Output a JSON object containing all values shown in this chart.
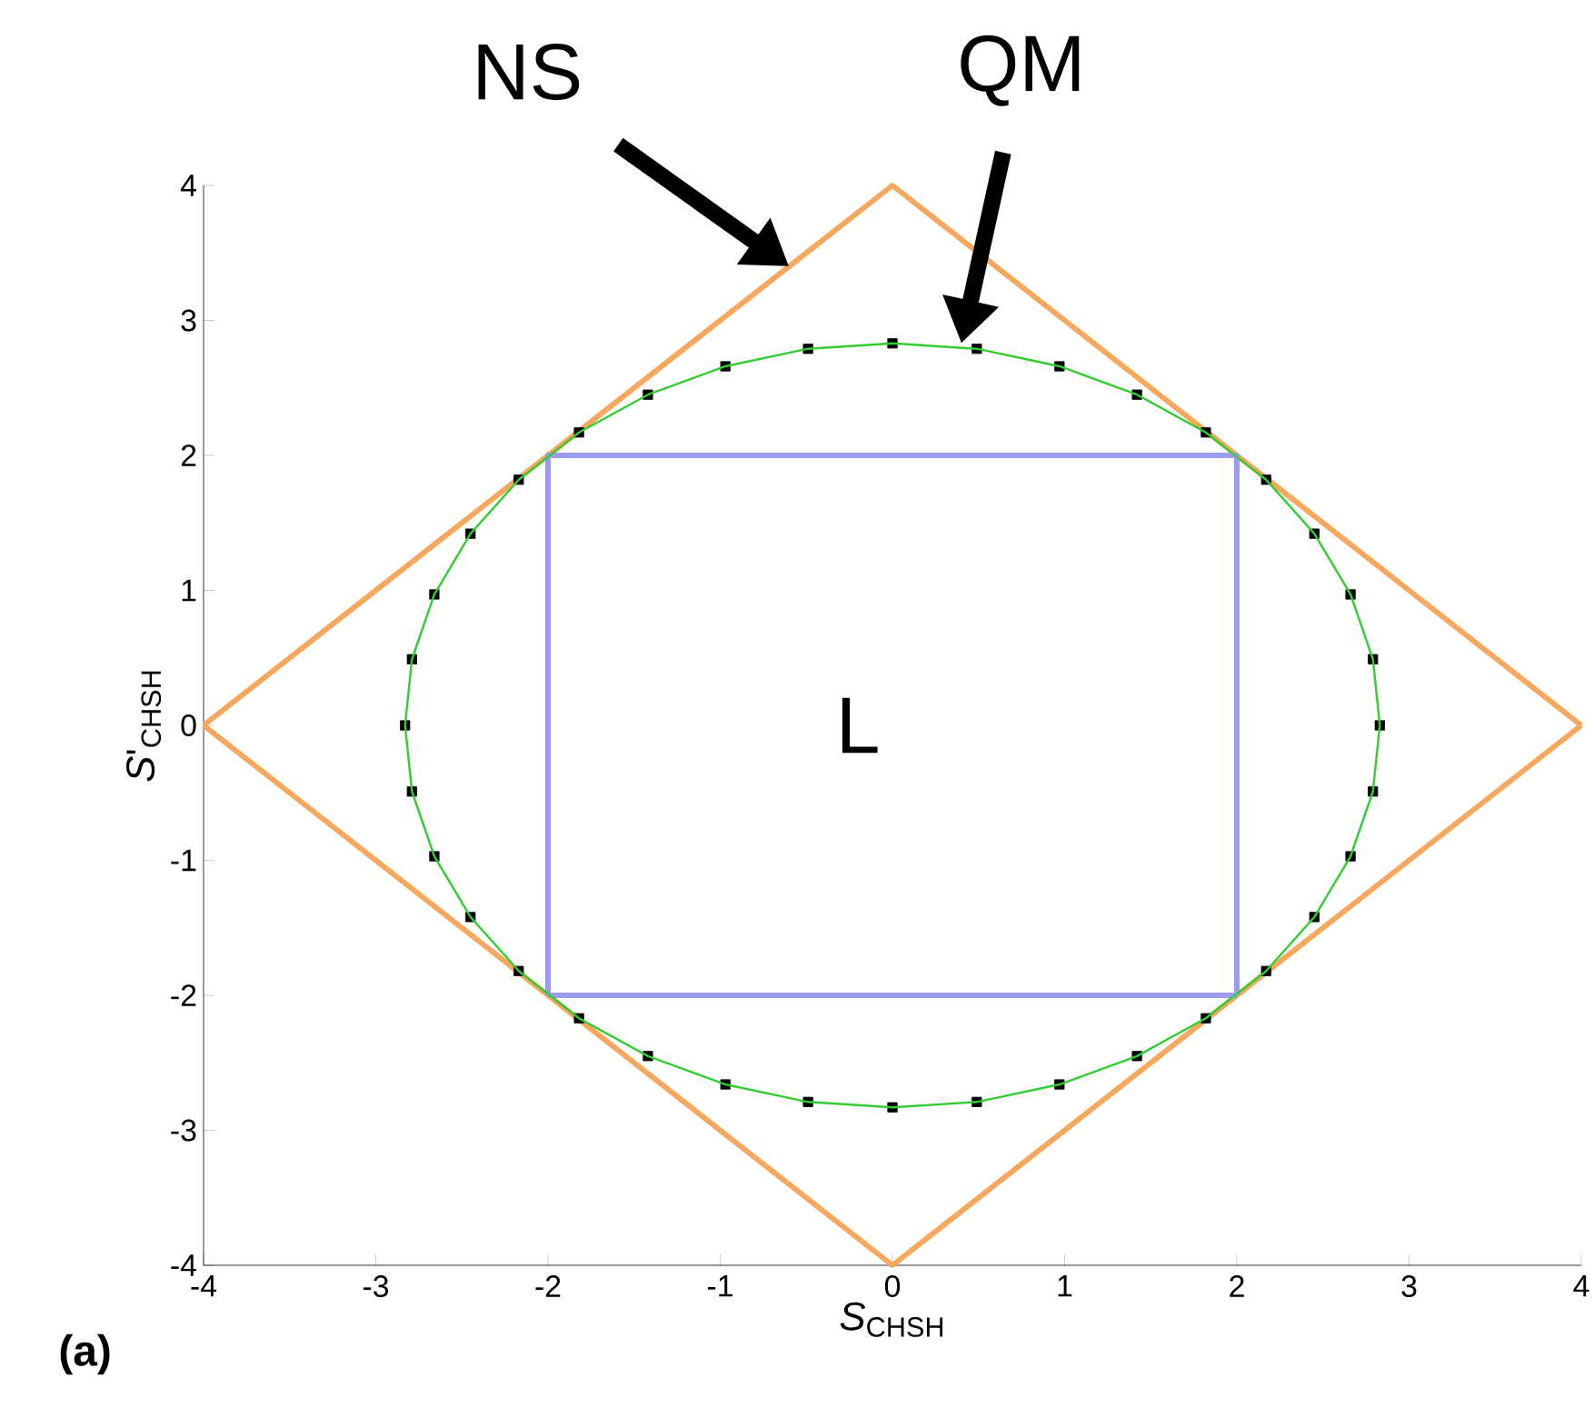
{
  "chart_data": {
    "type": "line",
    "xlabel": "*S*$_{CHSH}$",
    "ylabel": "*S*'$_{CHSH}$",
    "xlim": [
      -4,
      4
    ],
    "ylim": [
      -4,
      4
    ],
    "xticks": [
      -4,
      -3,
      -2,
      -1,
      0,
      1,
      2,
      3,
      4
    ],
    "yticks": [
      -4,
      -3,
      -2,
      -1,
      0,
      1,
      2,
      3,
      4
    ],
    "grid": false,
    "series": [
      {
        "color": "#f8a85e",
        "x": [
          -4,
          0,
          4
        ],
        "values": [
          0,
          4,
          0
        ]
      },
      {
        "color": "#f8a85e",
        "x": [
          -4,
          0,
          4
        ],
        "values": [
          0,
          -4,
          0
        ]
      },
      {
        "color": "#9b9bf2",
        "x": [
          -2,
          -2,
          2,
          2
        ],
        "values": [
          -2,
          2,
          2,
          -2
        ]
      },
      {
        "color": "#9b9bf2",
        "x": [
          -2,
          2
        ],
        "values": [
          -2,
          -2
        ]
      },
      {
        "type": "scatter",
        "marker": "square",
        "color": "#000000",
        "x": [
          2.83,
          2.79,
          2.66,
          2.45,
          2.17,
          1.82,
          1.42,
          0.97,
          0.49,
          0,
          -0.49,
          -0.97,
          -1.42,
          -1.82,
          -2.17,
          -2.45,
          -2.66,
          -2.79,
          -2.83,
          -2.79,
          -2.66,
          -2.45,
          -2.17,
          -1.82,
          -1.42,
          -0.97,
          -0.49,
          0,
          0.49,
          0.97,
          1.42,
          1.82,
          2.17,
          2.45,
          2.66,
          2.79
        ],
        "values": [
          0,
          0.49,
          0.97,
          1.42,
          1.82,
          2.17,
          2.45,
          2.66,
          2.79,
          2.83,
          2.79,
          2.66,
          2.45,
          2.17,
          1.82,
          1.42,
          0.97,
          0.49,
          0,
          -0.49,
          -0.97,
          -1.42,
          -1.82,
          -2.17,
          -2.45,
          -2.66,
          -2.79,
          -2.83,
          -2.79,
          -2.66,
          -2.45,
          -2.17,
          -1.82,
          -1.42,
          -0.97,
          -0.49
        ]
      }
    ],
    "annotations": [
      "NS",
      "QM",
      "L",
      "(a)"
    ]
  }
}
